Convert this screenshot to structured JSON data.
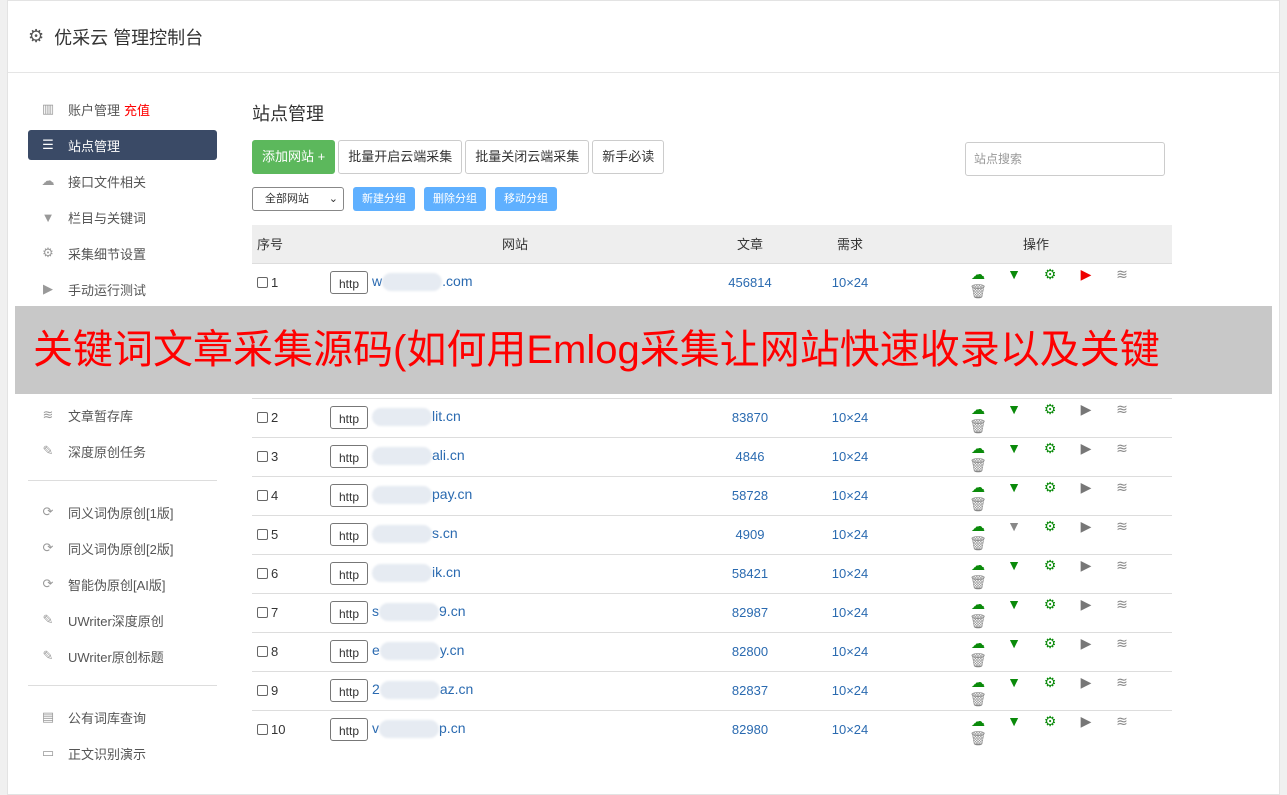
{
  "header": {
    "title": "优采云 管理控制台"
  },
  "sidebar": {
    "items": [
      {
        "label": "账户管理",
        "badge": "充值",
        "icon": "bar-chart-icon"
      },
      {
        "label": "站点管理",
        "icon": "server-icon",
        "active": true
      },
      {
        "label": "接口文件相关",
        "icon": "cloud-upload-icon"
      },
      {
        "label": "栏目与关键词",
        "icon": "filter-icon"
      },
      {
        "label": "采集细节设置",
        "icon": "gears-icon"
      },
      {
        "label": "手动运行测试",
        "icon": "play-icon"
      },
      {
        "label": "文章暂存库",
        "icon": "database-icon"
      },
      {
        "label": "深度原创任务",
        "icon": "edit-icon"
      }
    ],
    "group2": [
      {
        "label": "同义词伪原创[1版]"
      },
      {
        "label": "同义词伪原创[2版]"
      },
      {
        "label": "智能伪原创[AI版]"
      },
      {
        "label": "UWriter深度原创"
      },
      {
        "label": "UWriter原创标题"
      }
    ],
    "group3": [
      {
        "label": "公有词库查询"
      },
      {
        "label": "正文识别演示"
      }
    ]
  },
  "main": {
    "title": "站点管理",
    "add": "添加网站 +",
    "bulk_on": "批量开启云端采集",
    "bulk_off": "批量关闭云端采集",
    "guide": "新手必读",
    "search_placeholder": "站点搜索",
    "filter": "全部网站",
    "new_group": "新建分组",
    "del_group": "删除分组",
    "move_group": "移动分组",
    "columns": [
      "序号",
      "网站",
      "文章",
      "需求",
      "操作"
    ],
    "rows": [
      {
        "n": "1",
        "pre": "w",
        "dom": ".com",
        "art": "456814",
        "req": "10×24",
        "filter_active": true,
        "play_red": true
      },
      {
        "n": "2",
        "pre": "",
        "dom": "lit.cn",
        "art": "83870",
        "req": "10×24",
        "filter_active": true
      },
      {
        "n": "3",
        "pre": "",
        "dom": "ali.cn",
        "art": "4846",
        "req": "10×24",
        "filter_active": true
      },
      {
        "n": "4",
        "pre": "",
        "dom": "pay.cn",
        "art": "58728",
        "req": "10×24",
        "filter_active": true
      },
      {
        "n": "5",
        "pre": "",
        "dom": "s.cn",
        "art": "4909",
        "req": "10×24",
        "filter_active": false
      },
      {
        "n": "6",
        "pre": "",
        "dom": "ik.cn",
        "art": "58421",
        "req": "10×24",
        "filter_active": true
      },
      {
        "n": "7",
        "pre": "s",
        "dom": "9.cn",
        "art": "82987",
        "req": "10×24",
        "filter_active": true
      },
      {
        "n": "8",
        "pre": "e",
        "dom": "y.cn",
        "art": "82800",
        "req": "10×24",
        "filter_active": true
      },
      {
        "n": "9",
        "pre": "2",
        "dom": "az.cn",
        "art": "82837",
        "req": "10×24",
        "filter_active": true
      },
      {
        "n": "10",
        "pre": "v",
        "dom": "p.cn",
        "art": "82980",
        "req": "10×24",
        "filter_active": true
      }
    ],
    "http_label": "http"
  },
  "banner": {
    "text": "关键词文章采集源码(如何用Emlog采集让网站快速收录以及关键"
  },
  "colors": {
    "active_nav": "#3a4a66",
    "green": "#5cb85c",
    "group_btn": "#5fb0ff",
    "banner_text": "#ff0000"
  }
}
